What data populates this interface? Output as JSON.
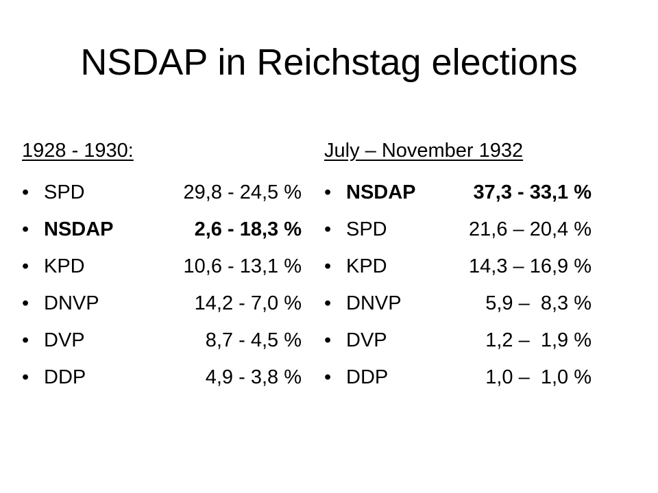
{
  "title": "NSDAP in Reichstag elections",
  "columns": [
    {
      "heading": "1928 - 1930:",
      "items": [
        {
          "party": "SPD",
          "value": "29,8 - 24,5 %",
          "bold": false
        },
        {
          "party": "NSDAP",
          "value": "2,6 - 18,3 %",
          "bold": true
        },
        {
          "party": "KPD",
          "value": "10,6 - 13,1 %",
          "bold": false
        },
        {
          "party": "DNVP",
          "value": "14,2 - 7,0 %",
          "bold": false
        },
        {
          "party": "DVP",
          "value": "8,7 - 4,5 %",
          "bold": false
        },
        {
          "party": "DDP",
          "value": "4,9 - 3,8 %",
          "bold": false
        }
      ]
    },
    {
      "heading": "July – November 1932",
      "items": [
        {
          "party": "NSDAP",
          "value": "37,3 - 33,1 %",
          "bold": true
        },
        {
          "party": "SPD",
          "value": "21,6 – 20,4 %",
          "bold": false
        },
        {
          "party": "KPD",
          "value": "14,3 – 16,9 %",
          "bold": false
        },
        {
          "party": "DNVP",
          "value": "5,9 –  8,3 %",
          "bold": false
        },
        {
          "party": "DVP",
          "value": "1,2 –  1,9 %",
          "bold": false
        },
        {
          "party": "DDP",
          "value": "1,0 –  1,0 %",
          "bold": false
        }
      ]
    }
  ]
}
